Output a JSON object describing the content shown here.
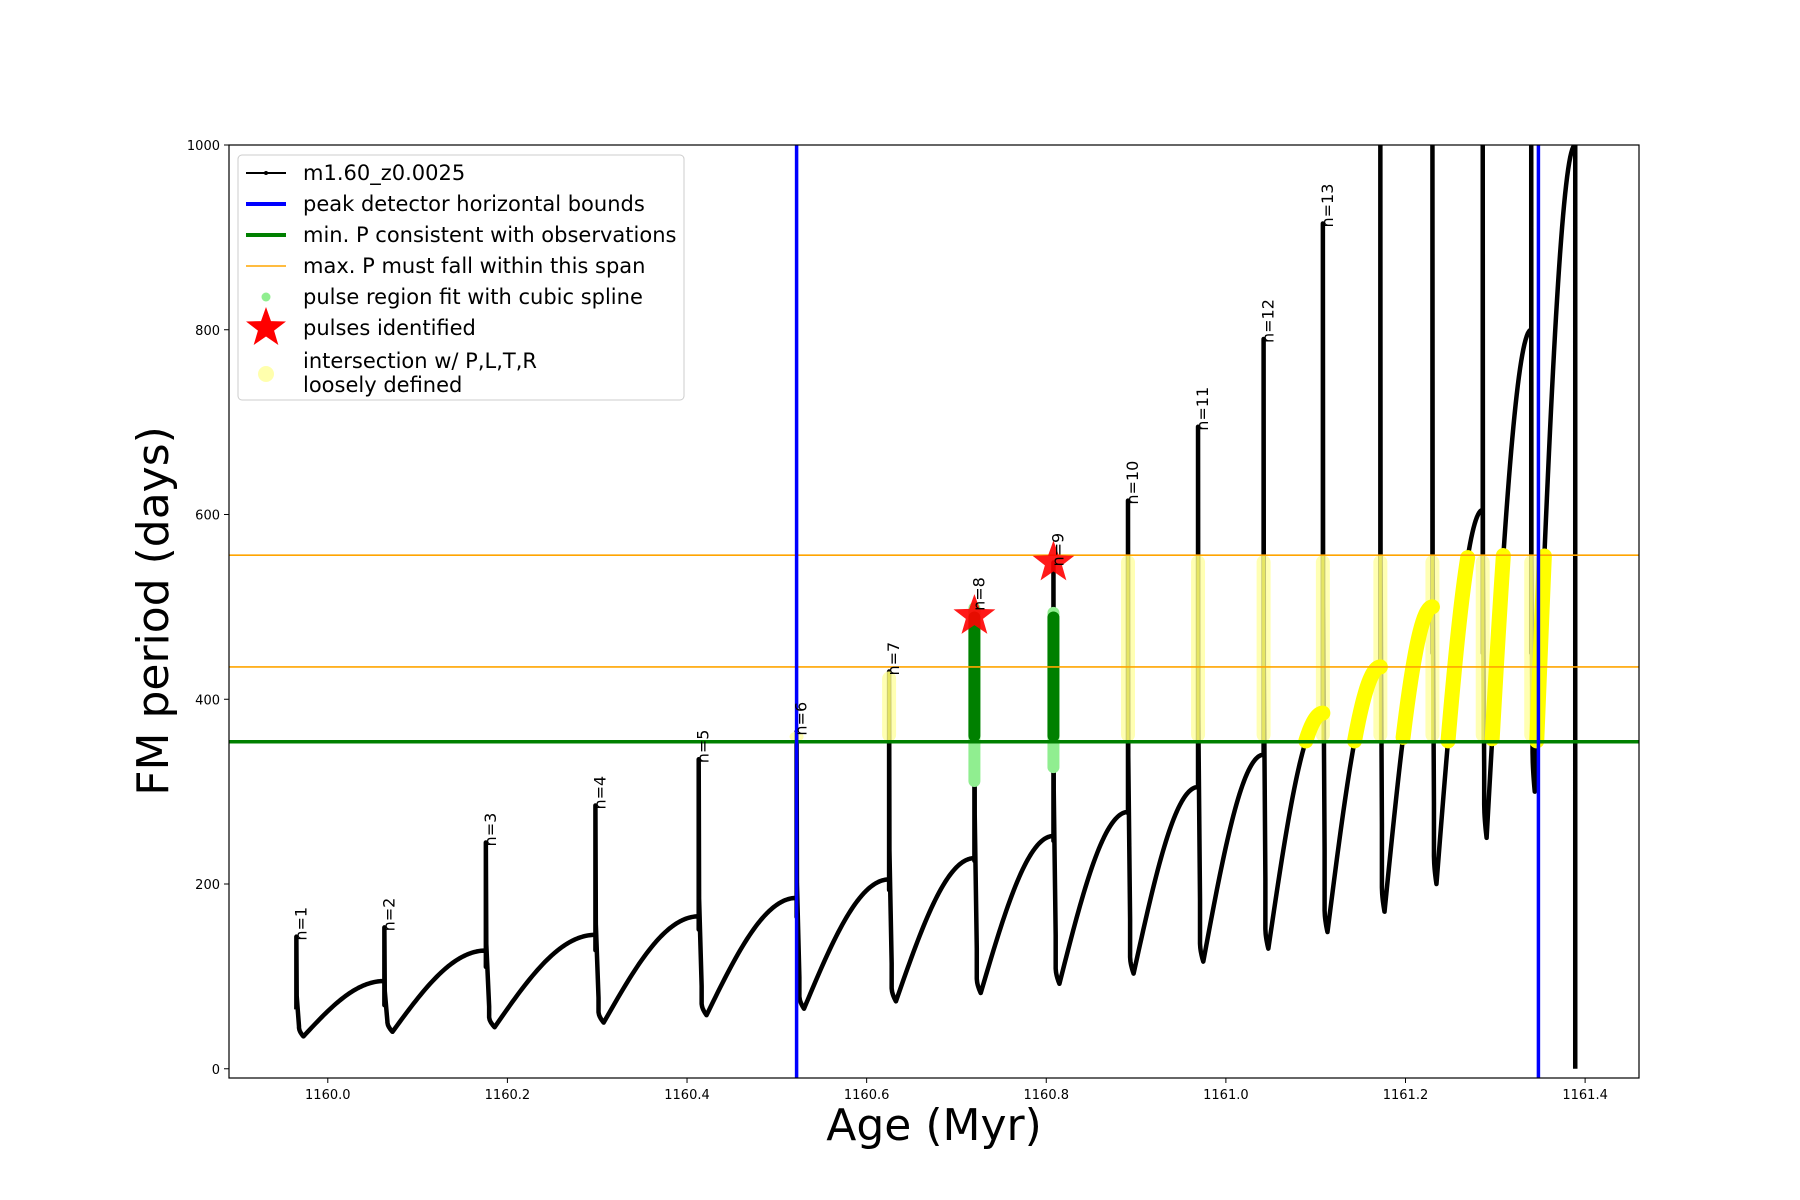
{
  "chart_data": {
    "type": "line",
    "title": "",
    "xlabel": "Age (Myr)",
    "ylabel": "FM period (days)",
    "xlim": [
      1159.89,
      1161.46
    ],
    "ylim": [
      -10,
      1000
    ],
    "xticks": [
      1160.0,
      1160.2,
      1160.4,
      1160.6,
      1160.8,
      1161.0,
      1161.2,
      1161.4
    ],
    "xtick_labels": [
      "1160.0",
      "1160.2",
      "1160.4",
      "1160.6",
      "1160.8",
      "1161.0",
      "1161.2",
      "1161.4"
    ],
    "yticks": [
      0,
      200,
      400,
      600,
      800,
      1000
    ],
    "ytick_labels": [
      "0",
      "200",
      "400",
      "600",
      "800",
      "1000"
    ],
    "grid": false,
    "legend_position": "top-left",
    "legend": [
      {
        "label": "m1.60_z0.0025",
        "kind": "line-marker",
        "color": "#000000"
      },
      {
        "label": "peak detector horizontal bounds",
        "kind": "line",
        "color": "#0000ff"
      },
      {
        "label": "min. P consistent with observations",
        "kind": "line",
        "color": "#008000"
      },
      {
        "label": "max. P must fall within this span",
        "kind": "thin-line",
        "color": "#ffa500"
      },
      {
        "label": "pulse region fit with cubic spline",
        "kind": "dot",
        "color": "#90ee90"
      },
      {
        "label": "pulses identified",
        "kind": "star",
        "color": "#ff0000"
      },
      {
        "label_lines": [
          "intersection w/ P,L,T,R",
          "loosely defined"
        ],
        "kind": "circle",
        "color": "#ffff99"
      }
    ],
    "vertical_bounds": [
      1160.522,
      1161.348
    ],
    "min_period": 354,
    "max_period_span": [
      435,
      556
    ],
    "cycles": [
      {
        "n": "n=1",
        "t0": 1159.965,
        "t1": 1160.063,
        "peak": 143,
        "trough": 35,
        "end": 95
      },
      {
        "n": "n=2",
        "t0": 1160.063,
        "t1": 1160.176,
        "peak": 153,
        "trough": 40,
        "end": 128
      },
      {
        "n": "n=3",
        "t0": 1160.176,
        "t1": 1160.298,
        "peak": 245,
        "trough": 45,
        "end": 145
      },
      {
        "n": "n=4",
        "t0": 1160.298,
        "t1": 1160.413,
        "peak": 285,
        "trough": 50,
        "end": 165
      },
      {
        "n": "n=5",
        "t0": 1160.413,
        "t1": 1160.522,
        "peak": 335,
        "trough": 58,
        "end": 185
      },
      {
        "n": "n=6",
        "t0": 1160.522,
        "t1": 1160.625,
        "peak": 365,
        "trough": 65,
        "end": 205
      },
      {
        "n": "n=7",
        "t0": 1160.625,
        "t1": 1160.72,
        "peak": 430,
        "trough": 73,
        "end": 228
      },
      {
        "n": "n=8",
        "t0": 1160.72,
        "t1": 1160.808,
        "peak": 500,
        "trough": 82,
        "end": 252
      },
      {
        "n": "n=9",
        "t0": 1160.808,
        "t1": 1160.891,
        "peak": 548,
        "trough": 92,
        "end": 278
      },
      {
        "n": "n=10",
        "t0": 1160.891,
        "t1": 1160.969,
        "peak": 615,
        "trough": 103,
        "end": 305
      },
      {
        "n": "n=11",
        "t0": 1160.969,
        "t1": 1161.042,
        "peak": 695,
        "trough": 116,
        "end": 340
      },
      {
        "n": "n=12",
        "t0": 1161.042,
        "t1": 1161.108,
        "peak": 790,
        "trough": 130,
        "end": 385
      },
      {
        "n": "n=13",
        "t0": 1161.108,
        "t1": 1161.172,
        "peak": 915,
        "trough": 148,
        "end": 435
      },
      {
        "n": "",
        "t0": 1161.172,
        "t1": 1161.23,
        "peak": 1000,
        "trough": 170,
        "end": 500
      },
      {
        "n": "",
        "t0": 1161.23,
        "t1": 1161.286,
        "peak": 1000,
        "trough": 200,
        "end": 605
      },
      {
        "n": "",
        "t0": 1161.286,
        "t1": 1161.34,
        "peak": 1000,
        "trough": 250,
        "end": 800
      },
      {
        "n": "",
        "t0": 1161.34,
        "t1": 1161.389,
        "peak": 1000,
        "trough": 300,
        "end": 1000
      }
    ],
    "final_drop": {
      "x": 1161.389,
      "from": 1000,
      "to": 0
    },
    "spline_fit_regions": [
      {
        "x": 1160.72,
        "ymin": 305,
        "ymax": 505
      },
      {
        "x": 1160.808,
        "ymin": 320,
        "ymax": 500
      }
    ],
    "pulses_identified": [
      {
        "x": 1160.72,
        "y": 490
      },
      {
        "x": 1160.808,
        "y": 548
      }
    ],
    "loose_intersection_x": [
      1160.522,
      1160.625,
      1160.891,
      1160.969,
      1161.042,
      1161.108,
      1161.172,
      1161.23,
      1161.286,
      1161.34
    ]
  }
}
